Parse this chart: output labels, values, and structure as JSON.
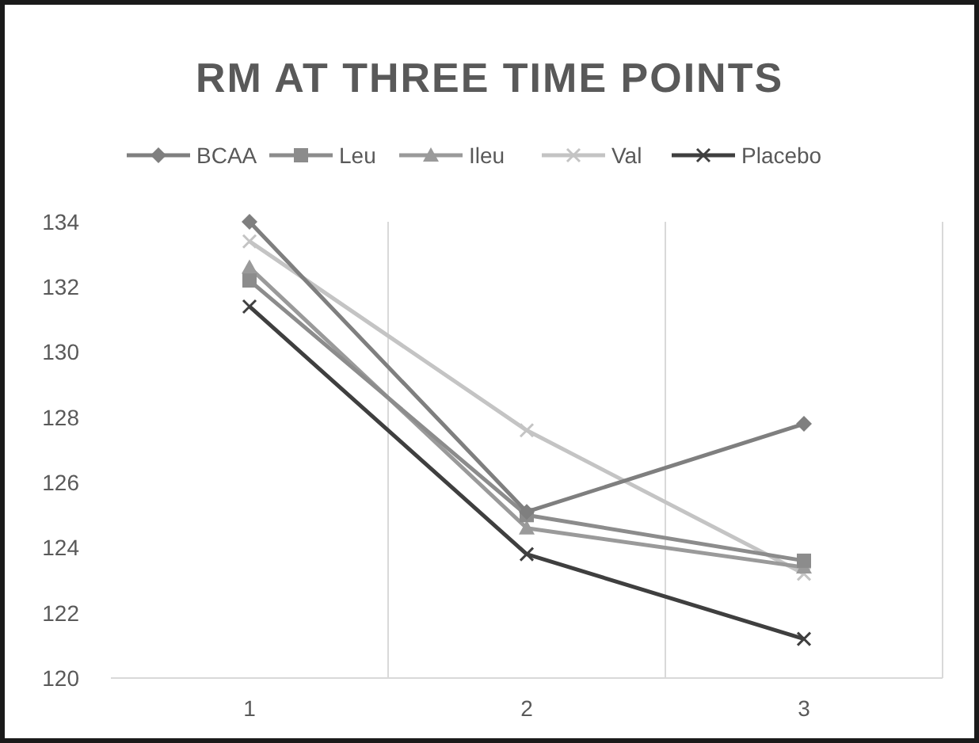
{
  "chart_data": {
    "type": "line",
    "title": "RM AT THREE TIME POINTS",
    "categories": [
      "1",
      "2",
      "3"
    ],
    "series": [
      {
        "name": "BCAA",
        "color": "#7f7f7f",
        "marker": "diamond",
        "values": [
          134.0,
          125.1,
          127.8
        ]
      },
      {
        "name": "Leu",
        "color": "#8c8c8c",
        "marker": "square",
        "values": [
          132.2,
          125.0,
          123.6
        ]
      },
      {
        "name": "Ileu",
        "color": "#9a9a9a",
        "marker": "triangle",
        "values": [
          132.6,
          124.6,
          123.4
        ]
      },
      {
        "name": "Val",
        "color": "#c4c4c4",
        "marker": "cross",
        "values": [
          133.4,
          127.6,
          123.2
        ]
      },
      {
        "name": "Placebo",
        "color": "#3f3f3f",
        "marker": "cross",
        "values": [
          131.4,
          123.8,
          121.2
        ]
      }
    ],
    "ylim": [
      120,
      134
    ],
    "yticks": [
      120,
      122,
      124,
      126,
      128,
      130,
      132,
      134
    ],
    "grid": "x",
    "legend": "top"
  }
}
